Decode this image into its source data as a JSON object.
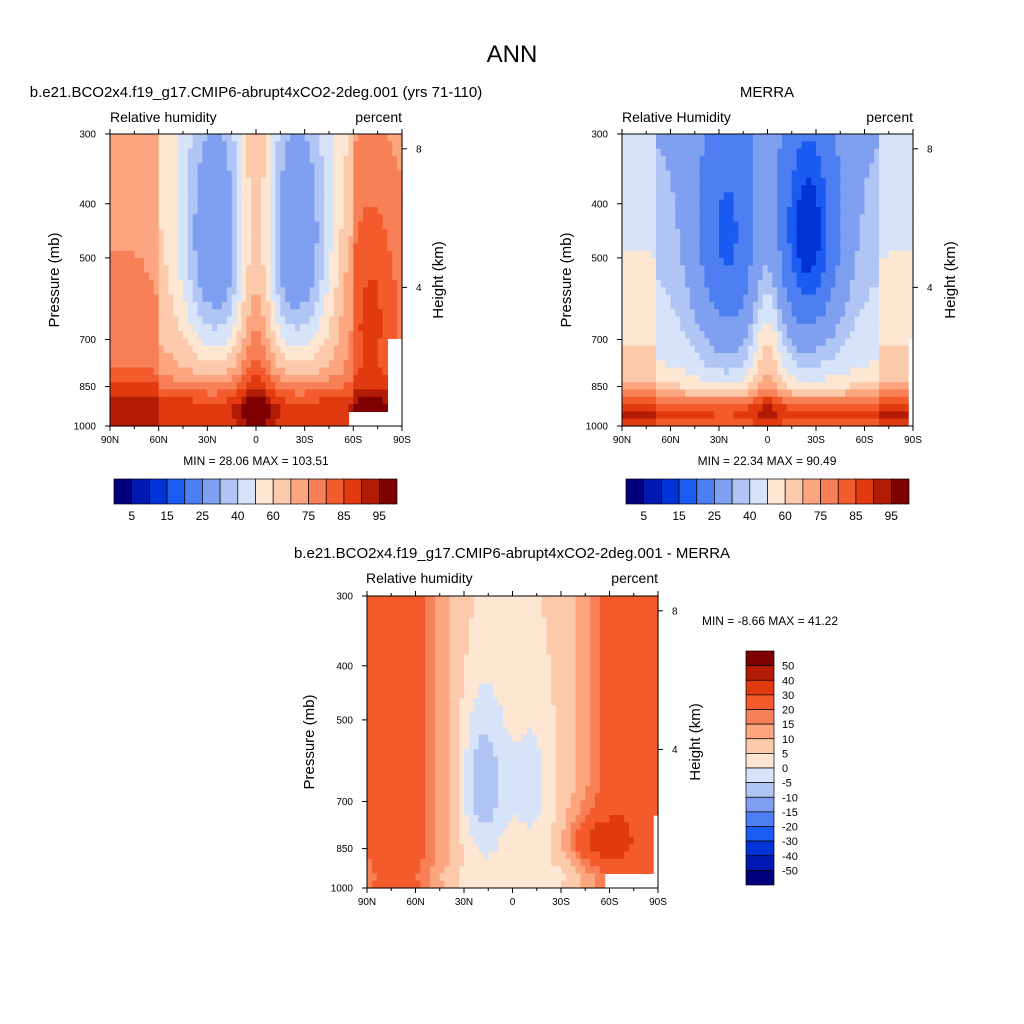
{
  "page": {
    "title": "ANN"
  },
  "colors": {
    "abs_scale": [
      "#00007f",
      "#0019b0",
      "#0033d6",
      "#1a5bf2",
      "#4d7ff2",
      "#7f9ff0",
      "#b0c5f4",
      "#d6e3f8",
      "#fde6d2",
      "#fcc9ab",
      "#fca57f",
      "#f88056",
      "#f35a2c",
      "#e13a10",
      "#b31c04",
      "#7f0000"
    ],
    "diff_scale": [
      "#00007f",
      "#0019b0",
      "#0033d6",
      "#1a5bf2",
      "#4d7ff2",
      "#7f9ff0",
      "#b0c5f4",
      "#d6e3f8",
      "#fde6d2",
      "#fcc9ab",
      "#fca57f",
      "#f88056",
      "#f35a2c",
      "#e13a10",
      "#b31c04",
      "#7f0000"
    ]
  },
  "chart_data": [
    {
      "type": "heatmap",
      "title": "b.e21.BCO2x4.f19_g17.CMIP6-abrupt4xCO2-2deg.001 (yrs 71-110)",
      "left_label": "Relative humidity",
      "right_label": "percent",
      "ylabel": "Pressure (mb)",
      "ylabel_right": "Height (km)",
      "x_ticks": [
        "90N",
        "60N",
        "30N",
        "0",
        "30S",
        "60S",
        "90S"
      ],
      "x_values": [
        90,
        60,
        30,
        0,
        -30,
        -60,
        -90
      ],
      "y_ticks": [
        "300",
        "400",
        "500",
        "700",
        "850",
        "1000"
      ],
      "y_values": [
        300,
        400,
        500,
        700,
        850,
        1000
      ],
      "yr_ticks": [
        "8",
        "4"
      ],
      "yr_values": [
        8,
        4
      ],
      "stats": "MIN =  28.06  MAX = 103.51",
      "min": 28.06,
      "max": 103.51,
      "colorbar": {
        "labels": [
          "5",
          "15",
          "25",
          "40",
          "60",
          "75",
          "85",
          "95"
        ]
      },
      "model": "abs4x"
    },
    {
      "type": "heatmap",
      "title": "MERRA",
      "left_label": "Relative Humidity",
      "right_label": "percent",
      "ylabel": "Pressure (mb)",
      "ylabel_right": "Height (km)",
      "x_ticks": [
        "90N",
        "60N",
        "30N",
        "0",
        "30S",
        "60S",
        "90S"
      ],
      "x_values": [
        90,
        60,
        30,
        0,
        -30,
        -60,
        -90
      ],
      "y_ticks": [
        "300",
        "400",
        "500",
        "700",
        "850",
        "1000"
      ],
      "y_values": [
        300,
        400,
        500,
        700,
        850,
        1000
      ],
      "yr_ticks": [
        "8",
        "4"
      ],
      "yr_values": [
        8,
        4
      ],
      "stats": "MIN =  22.34  MAX =  90.49",
      "min": 22.34,
      "max": 90.49,
      "colorbar": {
        "labels": [
          "5",
          "15",
          "25",
          "40",
          "60",
          "75",
          "85",
          "95"
        ]
      },
      "model": "absmerra"
    },
    {
      "type": "heatmap",
      "title": "b.e21.BCO2x4.f19_g17.CMIP6-abrupt4xCO2-2deg.001 - MERRA",
      "left_label": "Relative humidity",
      "right_label": "percent",
      "ylabel": "Pressure (mb)",
      "ylabel_right": "Height (km)",
      "x_ticks": [
        "90N",
        "60N",
        "30N",
        "0",
        "30S",
        "60S",
        "90S"
      ],
      "x_values": [
        90,
        60,
        30,
        0,
        -30,
        -60,
        -90
      ],
      "y_ticks": [
        "300",
        "400",
        "500",
        "700",
        "850",
        "1000"
      ],
      "y_values": [
        300,
        400,
        500,
        700,
        850,
        1000
      ],
      "yr_ticks": [
        "8",
        "4"
      ],
      "yr_values": [
        8,
        4
      ],
      "stats": "MIN =  -8.66  MAX =  41.22",
      "min": -8.66,
      "max": 41.22,
      "colorbar": {
        "labels": [
          "50",
          "40",
          "30",
          "20",
          "15",
          "10",
          "5",
          "0",
          "-5",
          "-10",
          "-15",
          "-20",
          "-30",
          "-40",
          "-50"
        ]
      },
      "model": "diff"
    }
  ]
}
